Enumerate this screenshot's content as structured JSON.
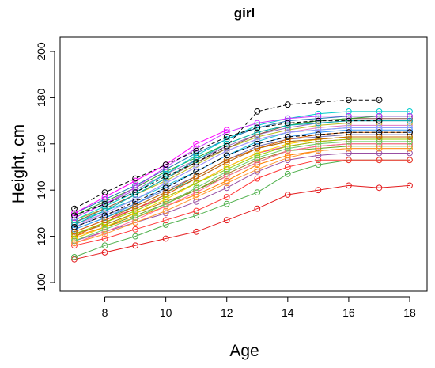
{
  "chart_data": {
    "type": "line",
    "title": "girl",
    "xlabel": "Age",
    "ylabel": "Height, cm",
    "xlim": [
      7,
      18
    ],
    "ylim": [
      100,
      200
    ],
    "xticks": [
      "8",
      "10",
      "12",
      "14",
      "16",
      "18"
    ],
    "yticks": [
      "100",
      "120",
      "140",
      "160",
      "180",
      "200"
    ],
    "grid": false,
    "legend": "none",
    "series": [
      {
        "color": "#000000",
        "dashed": true,
        "x": [
          7,
          8,
          9,
          10,
          11,
          12,
          13,
          14,
          15,
          16,
          17
        ],
        "y": [
          129,
          134,
          139,
          146,
          152,
          159,
          174,
          177,
          178,
          179,
          179
        ]
      },
      {
        "color": "#000000",
        "dashed": true,
        "x": [
          7,
          8,
          9,
          10,
          11,
          12,
          13,
          14,
          15,
          16,
          17
        ],
        "y": [
          132,
          139,
          145,
          151,
          157,
          163,
          167,
          169,
          170,
          170,
          170
        ]
      },
      {
        "color": "#000000",
        "dashed": true,
        "x": [
          7,
          8,
          9,
          10,
          11,
          12,
          13,
          14,
          15,
          16,
          17,
          18
        ],
        "y": [
          124,
          129,
          135,
          141,
          148,
          155,
          160,
          163,
          164,
          165,
          165,
          165
        ]
      },
      {
        "color": "#e41a1c",
        "x": [
          7,
          8,
          9,
          10,
          11,
          12,
          13,
          14,
          15,
          16,
          17,
          18
        ],
        "y": [
          110,
          113,
          116,
          119,
          122,
          127,
          132,
          138,
          140,
          142,
          141,
          142
        ]
      },
      {
        "color": "#4daf4a",
        "x": [
          7,
          8,
          9,
          10,
          11,
          12,
          13,
          14,
          15,
          16,
          17,
          18
        ],
        "y": [
          111,
          116,
          120,
          125,
          129,
          134,
          139,
          147,
          151,
          153,
          153,
          153
        ]
      },
      {
        "color": "#ff3333",
        "x": [
          7,
          8,
          9,
          10,
          11,
          12,
          13,
          14,
          15,
          16,
          17,
          18
        ],
        "y": [
          116,
          119,
          123,
          127,
          131,
          137,
          145,
          150,
          153,
          153,
          153,
          153
        ]
      },
      {
        "color": "#984ea3",
        "x": [
          7,
          8,
          9,
          10,
          11,
          12,
          13,
          14,
          15,
          16,
          17,
          18
        ],
        "y": [
          118,
          122,
          126,
          130,
          135,
          141,
          148,
          153,
          155,
          156,
          156,
          156
        ]
      },
      {
        "color": "#ff7f00",
        "x": [
          7,
          8,
          9,
          10,
          11,
          12,
          13,
          14,
          15,
          16,
          17,
          18
        ],
        "y": [
          120,
          124,
          128,
          133,
          138,
          144,
          151,
          155,
          157,
          158,
          158,
          158
        ]
      },
      {
        "color": "#a6761d",
        "x": [
          7,
          8,
          9,
          10,
          11,
          12,
          13,
          14,
          15,
          16,
          17,
          18
        ],
        "y": [
          121,
          125,
          130,
          135,
          140,
          147,
          153,
          157,
          159,
          160,
          160,
          160
        ]
      },
      {
        "color": "#66a61e",
        "x": [
          7,
          8,
          9,
          10,
          11,
          12,
          13,
          14,
          15,
          16,
          17,
          18
        ],
        "y": [
          119,
          124,
          129,
          134,
          140,
          146,
          152,
          157,
          158,
          159,
          159,
          159
        ]
      },
      {
        "color": "#e7298a",
        "x": [
          7,
          8,
          9,
          10,
          11,
          12,
          13,
          14,
          15,
          16,
          17,
          18
        ],
        "y": [
          122,
          127,
          132,
          137,
          143,
          150,
          156,
          159,
          161,
          162,
          162,
          162
        ]
      },
      {
        "color": "#1b9e77",
        "x": [
          7,
          8,
          9,
          10,
          11,
          12,
          13,
          14,
          15,
          16,
          17,
          18
        ],
        "y": [
          123,
          128,
          133,
          139,
          145,
          152,
          158,
          161,
          162,
          163,
          163,
          163
        ]
      },
      {
        "color": "#7570b3",
        "x": [
          7,
          8,
          9,
          10,
          11,
          12,
          13,
          14,
          15,
          16,
          17,
          18
        ],
        "y": [
          124,
          129,
          134,
          140,
          146,
          153,
          159,
          162,
          163,
          164,
          164,
          164
        ]
      },
      {
        "color": "#d95f02",
        "x": [
          7,
          8,
          9,
          10,
          11,
          12,
          13,
          14,
          15,
          16,
          17,
          18
        ],
        "y": [
          120,
          126,
          132,
          138,
          145,
          152,
          158,
          162,
          164,
          165,
          165,
          165
        ]
      },
      {
        "color": "#17becf",
        "x": [
          7,
          8,
          9,
          10,
          11,
          12,
          13,
          14,
          15,
          16,
          17,
          18
        ],
        "y": [
          126,
          131,
          136,
          142,
          148,
          155,
          161,
          165,
          166,
          167,
          167,
          167
        ]
      },
      {
        "color": "#e377c2",
        "x": [
          7,
          8,
          9,
          10,
          11,
          12,
          13,
          14,
          15,
          16,
          17,
          18
        ],
        "y": [
          125,
          130,
          136,
          143,
          150,
          157,
          162,
          165,
          167,
          168,
          168,
          168
        ]
      },
      {
        "color": "#bcbd22",
        "x": [
          7,
          8,
          9,
          10,
          11,
          12,
          13,
          14,
          15,
          16,
          17,
          18
        ],
        "y": [
          127,
          132,
          138,
          144,
          151,
          158,
          163,
          166,
          168,
          169,
          169,
          169
        ]
      },
      {
        "color": "#9467bd",
        "x": [
          7,
          8,
          9,
          10,
          11,
          12,
          13,
          14,
          15,
          16,
          17,
          18
        ],
        "y": [
          128,
          134,
          140,
          147,
          153,
          159,
          164,
          167,
          169,
          170,
          170,
          170
        ]
      },
      {
        "color": "#8c564b",
        "x": [
          7,
          8,
          9,
          10,
          11,
          12,
          13,
          14,
          15,
          16,
          17,
          18
        ],
        "y": [
          126,
          132,
          138,
          145,
          152,
          158,
          164,
          168,
          170,
          171,
          171,
          171
        ]
      },
      {
        "color": "#2ca02c",
        "x": [
          7,
          8,
          9,
          10,
          11,
          12,
          13,
          14,
          15,
          16,
          17,
          18
        ],
        "y": [
          129,
          135,
          141,
          148,
          154,
          160,
          165,
          168,
          170,
          171,
          172,
          172
        ]
      },
      {
        "color": "#1f77b4",
        "x": [
          7,
          8,
          9,
          10,
          11,
          12,
          13,
          14,
          15,
          16,
          17,
          18
        ],
        "y": [
          130,
          136,
          142,
          149,
          156,
          162,
          167,
          170,
          171,
          172,
          172,
          172
        ]
      },
      {
        "color": "#00cccc",
        "x": [
          7,
          8,
          9,
          10,
          11,
          12,
          13,
          14,
          15,
          16,
          17,
          18
        ],
        "y": [
          127,
          133,
          139,
          147,
          155,
          162,
          168,
          171,
          173,
          174,
          174,
          174
        ]
      },
      {
        "color": "#cc33ff",
        "x": [
          7,
          8,
          9,
          10,
          11,
          12,
          13,
          14,
          15,
          16,
          17,
          18
        ],
        "y": [
          128,
          134,
          141,
          150,
          158,
          165,
          169,
          171,
          172,
          172,
          172,
          172
        ]
      },
      {
        "color": "#ff00ff",
        "x": [
          7,
          8,
          9,
          10,
          11,
          12
        ],
        "y": [
          130,
          137,
          144,
          151,
          160,
          166
        ]
      },
      {
        "color": "#00b3b3",
        "x": [
          7,
          8,
          9,
          10,
          11,
          12,
          13,
          14,
          15,
          16,
          17,
          18
        ],
        "y": [
          125,
          131,
          138,
          145,
          153,
          160,
          165,
          168,
          169,
          170,
          170,
          170
        ]
      },
      {
        "color": "#ffcc00",
        "x": [
          7,
          8,
          9,
          10,
          11,
          12,
          13,
          14,
          15,
          16,
          17,
          18
        ],
        "y": [
          119,
          124,
          130,
          136,
          143,
          150,
          156,
          160,
          162,
          163,
          163,
          163
        ]
      },
      {
        "color": "#99cc00",
        "x": [
          7,
          8,
          9,
          10,
          11,
          12,
          13,
          14,
          15,
          16,
          17,
          18
        ],
        "y": [
          121,
          126,
          131,
          137,
          143,
          149,
          155,
          159,
          161,
          162,
          162,
          162
        ]
      },
      {
        "color": "#ff6699",
        "x": [
          7,
          8,
          9,
          10,
          11,
          12,
          13,
          14,
          15,
          16,
          17,
          18
        ],
        "y": [
          117,
          122,
          127,
          133,
          139,
          146,
          152,
          157,
          159,
          160,
          160,
          160
        ]
      },
      {
        "color": "#3399ff",
        "x": [
          7,
          8,
          9,
          10,
          11,
          12,
          13,
          14,
          15,
          16,
          17,
          18
        ],
        "y": [
          123,
          128,
          134,
          141,
          148,
          155,
          160,
          163,
          165,
          166,
          166,
          166
        ]
      },
      {
        "color": "#66cc66",
        "x": [
          7,
          8,
          9,
          10,
          11,
          12,
          13,
          14,
          15,
          16,
          17,
          18
        ],
        "y": [
          118,
          123,
          128,
          134,
          141,
          148,
          154,
          158,
          160,
          161,
          161,
          161
        ]
      },
      {
        "color": "#cc6600",
        "x": [
          7,
          8,
          9,
          10,
          11,
          12,
          13,
          14,
          15,
          16,
          17,
          18
        ],
        "y": [
          122,
          127,
          133,
          139,
          146,
          153,
          158,
          161,
          162,
          163,
          163,
          163
        ]
      },
      {
        "color": "#9999ff",
        "x": [
          7,
          8,
          9,
          10,
          11,
          12,
          13,
          14,
          15,
          16,
          17,
          18
        ],
        "y": [
          124,
          130,
          136,
          143,
          150,
          157,
          162,
          165,
          166,
          167,
          167,
          167
        ]
      },
      {
        "color": "#ff9933",
        "x": [
          7,
          8,
          9,
          10,
          11,
          12,
          13,
          14,
          15,
          16,
          17,
          18
        ],
        "y": [
          117,
          121,
          126,
          131,
          137,
          143,
          149,
          154,
          157,
          158,
          158,
          158
        ]
      }
    ]
  }
}
